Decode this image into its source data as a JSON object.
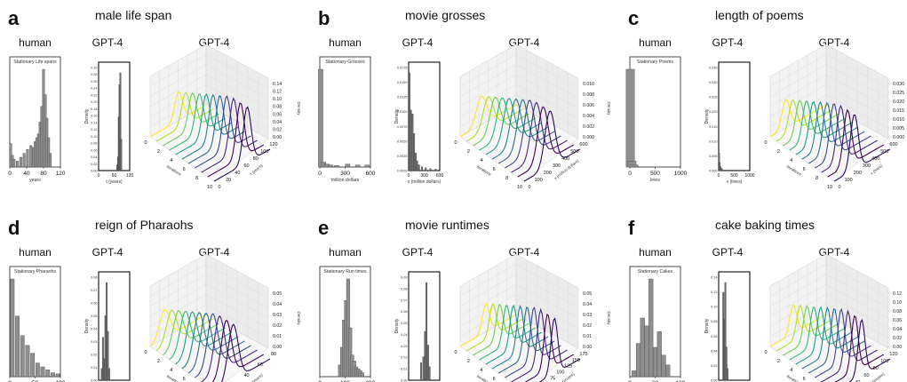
{
  "chart_data": [
    {
      "panel_letter": "a",
      "title": "male life span",
      "type": "bar",
      "human": {
        "column_label": "human",
        "inner_title": "Stationary Life spans",
        "xlabel": "years",
        "xticks": [
          "0",
          "40",
          "80",
          "120"
        ],
        "xlim": [
          0,
          120
        ],
        "bins": [
          {
            "x": 2,
            "h": 0.24
          },
          {
            "x": 6,
            "h": 0.12
          },
          {
            "x": 10,
            "h": 0.08
          },
          {
            "x": 18,
            "h": 0.06
          },
          {
            "x": 26,
            "h": 0.1
          },
          {
            "x": 34,
            "h": 0.14
          },
          {
            "x": 42,
            "h": 0.18
          },
          {
            "x": 50,
            "h": 0.22
          },
          {
            "x": 56,
            "h": 0.2
          },
          {
            "x": 60,
            "h": 0.26
          },
          {
            "x": 64,
            "h": 0.3
          },
          {
            "x": 68,
            "h": 0.34
          },
          {
            "x": 72,
            "h": 0.46
          },
          {
            "x": 76,
            "h": 0.62
          },
          {
            "x": 80,
            "h": 1.0
          },
          {
            "x": 84,
            "h": 0.74
          },
          {
            "x": 88,
            "h": 0.5
          },
          {
            "x": 92,
            "h": 0.3
          },
          {
            "x": 96,
            "h": 0.14
          }
        ]
      },
      "gpt_hist": {
        "column_label": "GPT-4",
        "ylabel": "Density",
        "xlabel": "t (years)",
        "xticks": [
          "0",
          "60",
          "120"
        ],
        "yticks": [
          "0.30",
          "0.28",
          "0.26",
          "0.24",
          "0.22",
          "0.20",
          "0.18",
          "0.16",
          "0.14",
          "0.12",
          "0.10",
          "0.08",
          "0.06",
          "0.04",
          "0.02",
          "0.00"
        ],
        "xlim": [
          0,
          120
        ],
        "bins": [
          {
            "x": 72,
            "h": 0.06
          },
          {
            "x": 75,
            "h": 0.14
          },
          {
            "x": 78,
            "h": 0.55
          },
          {
            "x": 81,
            "h": 0.88
          },
          {
            "x": 84,
            "h": 1.0
          },
          {
            "x": 87,
            "h": 0.32
          }
        ]
      },
      "waterfall": {
        "column_label": "GPT-4",
        "axis_iter_label": "iterations",
        "axis_iter_ticks": [
          "0",
          "2",
          "4",
          "6",
          "8",
          "10"
        ],
        "axis_t_label": "t (years)",
        "axis_t_ticks": [
          "0",
          "20",
          "40",
          "60",
          "80",
          "100",
          "120"
        ],
        "axis_z_label": "Density",
        "axis_z_ticks": [
          "0.14",
          "0.12",
          "0.10",
          "0.08",
          "0.06",
          "0.04",
          "0.02",
          "0.00"
        ]
      }
    },
    {
      "panel_letter": "b",
      "title": "movie grosses",
      "type": "bar",
      "human": {
        "column_label": "human",
        "inner_title": "Stationary Grosses",
        "xlabel": "million dollars",
        "xticks": [
          "0",
          "300",
          "600"
        ],
        "xlim": [
          0,
          600
        ],
        "bins": [
          {
            "x": 10,
            "h": 1.0
          },
          {
            "x": 45,
            "h": 0.05
          },
          {
            "x": 85,
            "h": 0.03
          },
          {
            "x": 130,
            "h": 0.02
          },
          {
            "x": 200,
            "h": 0.015
          },
          {
            "x": 330,
            "h": 0.03
          },
          {
            "x": 450,
            "h": 0.02
          },
          {
            "x": 560,
            "h": 0.02
          }
        ]
      },
      "gpt_hist": {
        "column_label": "GPT-4",
        "ylabel": "Density",
        "xlabel": "x (million dollars)",
        "xticks": [
          "0",
          "300",
          "600"
        ],
        "yticks": [
          "0.0175",
          "0.0150",
          "0.0125",
          "0.0100",
          "0.0075",
          "0.0050",
          "0.0025",
          "0.0000"
        ],
        "xlim": [
          0,
          600
        ],
        "bins": [
          {
            "x": 15,
            "h": 1.0
          },
          {
            "x": 45,
            "h": 0.62
          },
          {
            "x": 75,
            "h": 0.58
          },
          {
            "x": 105,
            "h": 0.38
          },
          {
            "x": 135,
            "h": 0.18
          },
          {
            "x": 165,
            "h": 0.1
          },
          {
            "x": 200,
            "h": 0.06
          },
          {
            "x": 260,
            "h": 0.04
          },
          {
            "x": 330,
            "h": 0.03
          },
          {
            "x": 420,
            "h": 0.02
          },
          {
            "x": 520,
            "h": 0.015
          }
        ]
      },
      "waterfall": {
        "column_label": "GPT-4",
        "axis_iter_label": "iterations",
        "axis_iter_ticks": [
          "0",
          "2",
          "4",
          "6",
          "8",
          "10"
        ],
        "axis_t_label": "x (million dollars)",
        "axis_t_ticks": [
          "0",
          "100",
          "200",
          "300",
          "400",
          "500",
          "600"
        ],
        "axis_z_label": "Density",
        "axis_z_ticks": [
          "0.010",
          "0.008",
          "0.006",
          "0.004",
          "0.002",
          "0.000"
        ]
      }
    },
    {
      "panel_letter": "c",
      "title": "length of poems",
      "type": "bar",
      "human": {
        "column_label": "human",
        "inner_title": "Stationary Poems",
        "xlabel": "lines",
        "xticks": [
          "0",
          "500",
          "1000"
        ],
        "xlim": [
          0,
          1000
        ],
        "bins": [
          {
            "x": 10,
            "h": 1.0
          },
          {
            "x": 40,
            "h": 0.06
          },
          {
            "x": 80,
            "h": 0.02
          }
        ]
      },
      "gpt_hist": {
        "column_label": "GPT-4",
        "ylabel": "Density",
        "xlabel": "x (lines)",
        "xticks": [
          "0",
          "500",
          "1000"
        ],
        "yticks": [
          "0.035",
          "0.030",
          "0.025",
          "0.020",
          "0.015",
          "0.010",
          "0.005",
          "0.000"
        ],
        "xlim": [
          0,
          1000
        ],
        "bins": [
          {
            "x": 10,
            "h": 0.18
          },
          {
            "x": 30,
            "h": 0.08
          },
          {
            "x": 60,
            "h": 0.04
          },
          {
            "x": 100,
            "h": 0.02
          }
        ]
      },
      "waterfall": {
        "column_label": "GPT-4",
        "axis_iter_label": "iterations",
        "axis_iter_ticks": [
          "0",
          "2",
          "4",
          "6",
          "8",
          "10"
        ],
        "axis_t_label": "x (lines)",
        "axis_t_ticks": [
          "0",
          "100",
          "200",
          "300",
          "400",
          "500",
          "600"
        ],
        "axis_z_label": "Density",
        "axis_z_ticks": [
          "0.030",
          "0.025",
          "0.020",
          "0.015",
          "0.010",
          "0.005",
          "0.000"
        ]
      }
    },
    {
      "panel_letter": "d",
      "title": "reign of Pharaohs",
      "type": "bar",
      "human": {
        "column_label": "human",
        "inner_title": "Stationary Pharaohs",
        "xlabel": "years",
        "xticks": [
          "0",
          "50",
          "100"
        ],
        "xlim": [
          0,
          100
        ],
        "bins": [
          {
            "x": 5,
            "h": 1.0
          },
          {
            "x": 15,
            "h": 0.62
          },
          {
            "x": 25,
            "h": 0.42
          },
          {
            "x": 35,
            "h": 0.32
          },
          {
            "x": 45,
            "h": 0.24
          },
          {
            "x": 55,
            "h": 0.14
          },
          {
            "x": 65,
            "h": 0.1
          },
          {
            "x": 75,
            "h": 0.07
          },
          {
            "x": 85,
            "h": 0.04
          },
          {
            "x": 95,
            "h": 0.03
          }
        ]
      },
      "gpt_hist": {
        "column_label": "GPT-4",
        "ylabel": "Density",
        "xlabel": "t (years)",
        "xticks": [
          "0",
          "50",
          "100"
        ],
        "yticks": [
          "0.08",
          "0.07",
          "0.06",
          "0.05",
          "0.04",
          "0.03",
          "0.02",
          "0.01",
          "0.00"
        ],
        "xlim": [
          0,
          100
        ],
        "bins": [
          {
            "x": 10,
            "h": 0.12
          },
          {
            "x": 14,
            "h": 0.44
          },
          {
            "x": 18,
            "h": 0.22
          },
          {
            "x": 22,
            "h": 0.66
          },
          {
            "x": 26,
            "h": 1.0
          },
          {
            "x": 30,
            "h": 0.5
          },
          {
            "x": 34,
            "h": 0.12
          }
        ]
      },
      "waterfall": {
        "column_label": "GPT-4",
        "axis_iter_label": "iterations",
        "axis_iter_ticks": [
          "0",
          "2",
          "4",
          "6",
          "8",
          "10"
        ],
        "axis_t_label": "t (years)",
        "axis_t_ticks": [
          "0",
          "20",
          "40",
          "60",
          "80"
        ],
        "axis_z_label": "Density",
        "axis_z_ticks": [
          "0.05",
          "0.04",
          "0.03",
          "0.02",
          "0.01",
          "0.00"
        ]
      }
    },
    {
      "panel_letter": "e",
      "title": "movie runtimes",
      "type": "bar",
      "human": {
        "column_label": "human",
        "inner_title": "Stationary Run times",
        "xlabel": "minutes",
        "xticks": [
          "0",
          "100",
          "200"
        ],
        "xlim": [
          0,
          200
        ],
        "bins": [
          {
            "x": 80,
            "h": 0.12
          },
          {
            "x": 88,
            "h": 0.3
          },
          {
            "x": 96,
            "h": 0.58
          },
          {
            "x": 104,
            "h": 0.78
          },
          {
            "x": 112,
            "h": 1.0
          },
          {
            "x": 120,
            "h": 0.5
          },
          {
            "x": 128,
            "h": 0.22
          },
          {
            "x": 136,
            "h": 0.16
          },
          {
            "x": 144,
            "h": 0.1
          },
          {
            "x": 152,
            "h": 0.08
          },
          {
            "x": 160,
            "h": 0.06
          },
          {
            "x": 168,
            "h": 0.04
          }
        ]
      },
      "gpt_hist": {
        "column_label": "GPT-4",
        "ylabel": "Density",
        "xlabel": "t (minutes)",
        "xticks": [
          "0",
          "100",
          "200"
        ],
        "yticks": [
          "0.09",
          "0.08",
          "0.07",
          "0.06",
          "0.05",
          "0.04",
          "0.03",
          "0.02",
          "0.01",
          "0.00"
        ],
        "xlim": [
          0,
          200
        ],
        "bins": [
          {
            "x": 80,
            "h": 0.18
          },
          {
            "x": 95,
            "h": 0.24
          },
          {
            "x": 105,
            "h": 0.5
          },
          {
            "x": 115,
            "h": 1.0
          },
          {
            "x": 125,
            "h": 0.36
          },
          {
            "x": 135,
            "h": 0.14
          }
        ]
      },
      "waterfall": {
        "column_label": "GPT-4",
        "axis_iter_label": "iterations",
        "axis_iter_ticks": [
          "0",
          "2",
          "4",
          "6",
          "8",
          "10"
        ],
        "axis_t_label": "t (minutes)",
        "axis_t_ticks": [
          "0",
          "25",
          "50",
          "75",
          "100",
          "125",
          "150",
          "175"
        ],
        "axis_z_label": "Density",
        "axis_z_ticks": [
          "0.05",
          "0.04",
          "0.03",
          "0.02",
          "0.01",
          "0.00"
        ]
      }
    },
    {
      "panel_letter": "f",
      "title": "cake baking times",
      "type": "bar",
      "human": {
        "column_label": "human",
        "inner_title": "Stationary Cakes",
        "xlabel": "minutes",
        "xticks": [
          "0",
          "60",
          "120"
        ],
        "xlim": [
          0,
          120
        ],
        "bins": [
          {
            "x": 10,
            "h": 0.06
          },
          {
            "x": 20,
            "h": 0.34
          },
          {
            "x": 30,
            "h": 0.6
          },
          {
            "x": 40,
            "h": 0.52
          },
          {
            "x": 50,
            "h": 1.0
          },
          {
            "x": 60,
            "h": 0.3
          },
          {
            "x": 70,
            "h": 0.46
          },
          {
            "x": 80,
            "h": 0.22
          },
          {
            "x": 90,
            "h": 0.12
          }
        ]
      },
      "gpt_hist": {
        "column_label": "GPT-4",
        "ylabel": "Density",
        "xlabel": "t (minutes)",
        "xticks": [
          "0",
          "60",
          "120"
        ],
        "yticks": [
          "0.14",
          "0.12",
          "0.10",
          "0.08",
          "0.06",
          "0.04",
          "0.02",
          "0.00"
        ],
        "xlim": [
          0,
          120
        ],
        "bins": [
          {
            "x": 18,
            "h": 0.9
          },
          {
            "x": 22,
            "h": 0.62
          },
          {
            "x": 26,
            "h": 1.0
          },
          {
            "x": 30,
            "h": 0.34
          },
          {
            "x": 34,
            "h": 0.12
          }
        ]
      },
      "waterfall": {
        "column_label": "GPT-4",
        "axis_iter_label": "iterations",
        "axis_iter_ticks": [
          "0",
          "2",
          "4",
          "6",
          "8",
          "10"
        ],
        "axis_t_label": "t (minutes)",
        "axis_t_ticks": [
          "0",
          "20",
          "40",
          "60",
          "80",
          "100",
          "120"
        ],
        "axis_z_label": "Density",
        "axis_z_ticks": [
          "0.12",
          "0.10",
          "0.08",
          "0.06",
          "0.04",
          "0.02",
          "0.00"
        ]
      }
    }
  ],
  "colors": {
    "bar_fill": "#8f8f8f",
    "bar_stroke": "#4a4a4a",
    "ridge_palette": [
      "#fde725",
      "#b5de2b",
      "#6ece58",
      "#35b779",
      "#1f9e89",
      "#26828e",
      "#31688e",
      "#3e4989",
      "#482878",
      "#440154",
      "#2d0a57"
    ]
  }
}
